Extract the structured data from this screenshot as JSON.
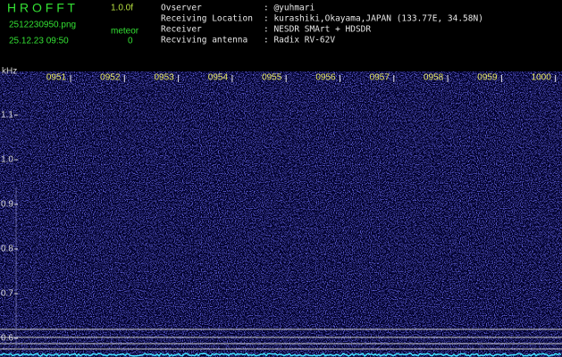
{
  "header": {
    "app": "H R O F F T",
    "version": "1.0.0f",
    "filename": "2512230950.png",
    "datetime": "25.12.23 09:50",
    "meteor_label": "meteor",
    "meteor_count": 0
  },
  "info": [
    {
      "label": "Ovserver",
      "value": ": @yuhmari"
    },
    {
      "label": "Receiving Location",
      "value": ": kurashiki,Okayama,JAPAN (133.77E, 34.58N)"
    },
    {
      "label": "Receiver",
      "value": ": NESDR SMArt + HDSDR"
    },
    {
      "label": "Recviving antenna",
      "value": ": Radix RV-62V"
    }
  ],
  "time_labels": [
    "0951",
    "0952",
    "0953",
    "0954",
    "0955",
    "0956",
    "0957",
    "0958",
    "0959",
    "1000"
  ],
  "freq_unit": "kHz",
  "freq_labels": [
    "1.1",
    "1.0",
    "0.9",
    "0.8",
    "0.7",
    "0.6"
  ]
}
